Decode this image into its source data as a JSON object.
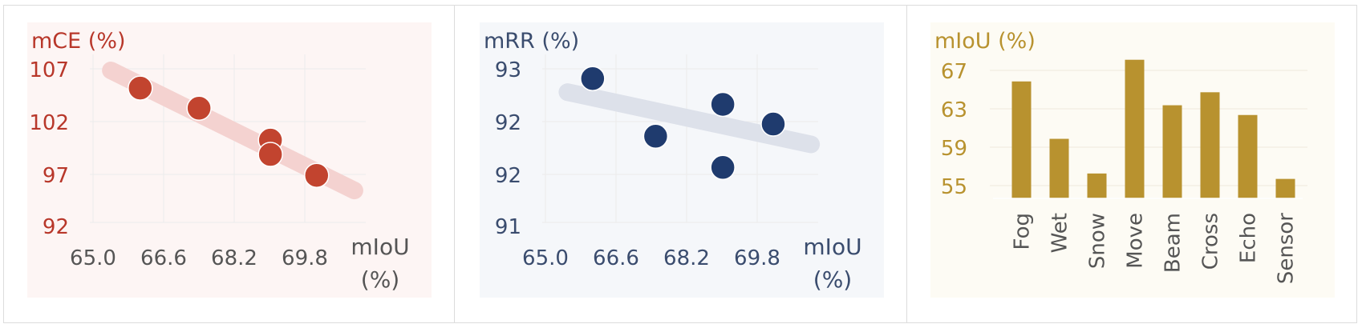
{
  "chart_data": [
    {
      "type": "scatter",
      "ylabel": "mCE (%)",
      "xlabel": "mIoU (%)",
      "xlabel_line1": "mIoU",
      "xlabel_line2": "(%)",
      "xticks": [
        "65.0",
        "66.6",
        "68.2",
        "69.8"
      ],
      "yticks": [
        "107",
        "102",
        "97",
        "92"
      ],
      "xlim": [
        64.4,
        71.6
      ],
      "ylim": [
        89.8,
        110
      ],
      "points": [
        {
          "x": 65.6,
          "y": 105.8
        },
        {
          "x": 67.0,
          "y": 103.4
        },
        {
          "x": 68.7,
          "y": 99.6
        },
        {
          "x": 68.7,
          "y": 97.9
        },
        {
          "x": 69.8,
          "y": 95.4
        }
      ],
      "trend": [
        {
          "x": 64.9,
          "y": 107.9
        },
        {
          "x": 70.7,
          "y": 93.6
        }
      ],
      "grid": true,
      "colors": {
        "accent": "#b8372a",
        "point": "#c2442f",
        "trend": "#f4d2d0",
        "background": "#fdf5f4",
        "tick": "#b8372a",
        "xtick": "#555555"
      }
    },
    {
      "type": "scatter",
      "ylabel": "mRR (%)",
      "xlabel": "mIoU (%)",
      "xlabel_line1": "mIoU",
      "xlabel_line2": "(%)",
      "xticks": [
        "65.0",
        "66.6",
        "68.2",
        "69.8"
      ],
      "yticks": [
        "93",
        "92",
        "92",
        "91"
      ],
      "xlim": [
        64.4,
        71.6
      ],
      "ylim": [
        90.75,
        93.25
      ],
      "points": [
        {
          "x": 65.6,
          "y": 92.87
        },
        {
          "x": 67.1,
          "y": 92.02
        },
        {
          "x": 68.7,
          "y": 92.49
        },
        {
          "x": 69.9,
          "y": 92.2
        },
        {
          "x": 68.7,
          "y": 91.56
        }
      ],
      "trend": [
        {
          "x": 65.0,
          "y": 92.67
        },
        {
          "x": 70.8,
          "y": 91.9
        }
      ],
      "grid": true,
      "colors": {
        "accent": "#3a4c6e",
        "point": "#1f3b6e",
        "trend": "#dde1ea",
        "background": "#f5f7fa",
        "tick": "#3a4c6e",
        "xtick": "#3a4c6e"
      }
    },
    {
      "type": "bar",
      "ylabel": "mIoU (%)",
      "categories": [
        "Fog",
        "Wet",
        "Snow",
        "Move",
        "Beam",
        "Cross",
        "Echo",
        "Sensor"
      ],
      "values": [
        65.8,
        60.5,
        57.3,
        67.8,
        63.6,
        64.8,
        62.7,
        56.8
      ],
      "yticks": [
        "67",
        "63",
        "59",
        "55"
      ],
      "ylim": [
        55,
        68
      ],
      "grid": true,
      "colors": {
        "accent": "#b8922f",
        "bar": "#b8922f",
        "background": "#fdfbf4",
        "tick": "#b8922f",
        "xtick": "#555555"
      }
    }
  ]
}
